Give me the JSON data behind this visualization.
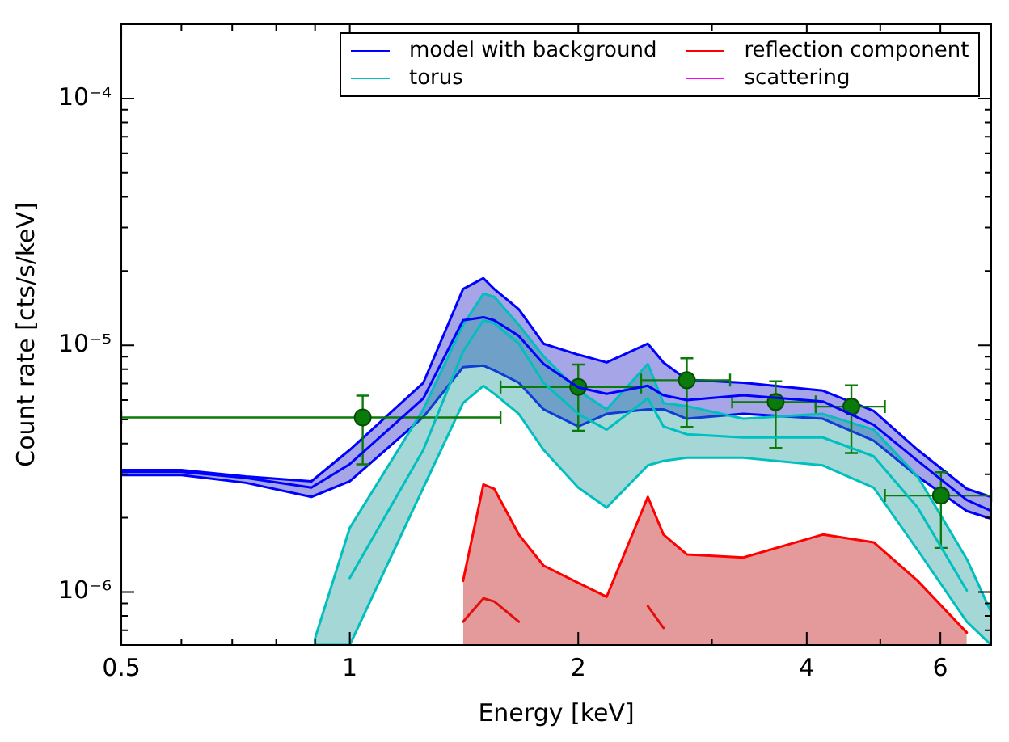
{
  "chart_data": {
    "type": "line",
    "xlabel": "Energy [keV]",
    "ylabel": "Count rate [cts/s/keV]",
    "log": "xy",
    "legend": "top right",
    "xlim": [
      0.5,
      7
    ],
    "ylim": [
      6.1e-07,
      0.0002
    ],
    "xticks": [
      0.5,
      {
        "value": 0.6,
        "label": null
      },
      {
        "value": 0.7,
        "label": null
      },
      {
        "value": 0.8,
        "label": null
      },
      {
        "value": 0.9,
        "label": null
      },
      1,
      2,
      {
        "value": 3,
        "label": null
      },
      4,
      {
        "value": 5,
        "label": null
      },
      6,
      {
        "value": 7,
        "label": null
      }
    ],
    "yticks": [
      {
        "value": 7e-07,
        "label": null
      },
      {
        "value": 8e-07,
        "label": null
      },
      {
        "value": 9e-07,
        "label": null
      },
      {
        "value": 1e-06,
        "label": "10⁻⁶"
      },
      {
        "value": 2e-06,
        "label": null
      },
      {
        "value": 3e-06,
        "label": null
      },
      {
        "value": 4e-06,
        "label": null
      },
      {
        "value": 5e-06,
        "label": null
      },
      {
        "value": 6e-06,
        "label": null
      },
      {
        "value": 7e-06,
        "label": null
      },
      {
        "value": 8e-06,
        "label": null
      },
      {
        "value": 9e-06,
        "label": null
      },
      {
        "value": 1e-05,
        "label": "10⁻⁵"
      },
      {
        "value": 2e-05,
        "label": null
      },
      {
        "value": 3e-05,
        "label": null
      },
      {
        "value": 4e-05,
        "label": null
      },
      {
        "value": 5e-05,
        "label": null
      },
      {
        "value": 6e-05,
        "label": null
      },
      {
        "value": 7e-05,
        "label": null
      },
      {
        "value": 8e-05,
        "label": null
      },
      {
        "value": 9e-05,
        "label": null
      },
      {
        "value": 0.0001,
        "label": "10⁻⁴"
      },
      {
        "value": 0.0002,
        "label": null
      }
    ],
    "x": [
      0.5,
      0.6,
      0.73,
      0.89,
      1.0,
      1.25,
      1.41,
      1.5,
      1.55,
      1.67,
      1.8,
      2.0,
      2.18,
      2.47,
      2.59,
      2.78,
      3.3,
      4.2,
      4.9,
      5.6,
      6.5,
      7.0
    ],
    "series": [
      {
        "name": "model with background",
        "color": "#0000ff",
        "values": [
          3.07e-06,
          3.07e-06,
          2.9e-06,
          2.65e-06,
          3.3e-06,
          6.09e-06,
          1.263e-05,
          1.3e-05,
          1.263e-05,
          1.091e-05,
          8.4e-06,
          6.75e-06,
          6.36e-06,
          6.85e-06,
          6.27e-06,
          6e-06,
          6.27e-06,
          5.92e-06,
          4.76e-06,
          3.4e-06,
          2.36e-06,
          2.13e-06
        ],
        "upper": [
          3.12e-06,
          3.12e-06,
          2.94e-06,
          2.81e-06,
          3.77e-06,
          7.05e-06,
          1.69e-05,
          1.87e-05,
          1.69e-05,
          1.4e-05,
          1.015e-05,
          9.16e-06,
          8.52e-06,
          1.015e-05,
          8.52e-06,
          7.26e-06,
          7.05e-06,
          6.55e-06,
          5.42e-06,
          3.77e-06,
          2.62e-06,
          2.43e-06
        ],
        "lower": [
          2.98e-06,
          2.98e-06,
          2.77e-06,
          2.43e-06,
          2.81e-06,
          5.12e-06,
          8.15e-06,
          8.27e-06,
          7.92e-06,
          7.05e-06,
          5.5e-06,
          4.69e-06,
          5.27e-06,
          5.5e-06,
          5.5e-06,
          5.04e-06,
          5.27e-06,
          5.04e-06,
          4.11e-06,
          2.94e-06,
          2.13e-06,
          1.98e-06
        ]
      },
      {
        "name": "torus",
        "color": "#00bfbf",
        "x": [
          0.9,
          1.0,
          1.25,
          1.41,
          1.5,
          1.55,
          1.67,
          1.8,
          2.0,
          2.18,
          2.47,
          2.59,
          2.78,
          3.3,
          4.2,
          4.9,
          5.6,
          6.5,
          7.0
        ],
        "values": [
          null,
          1.14e-06,
          3.77e-06,
          9.43e-06,
          1.263e-05,
          1.226e-05,
          1.015e-05,
          7.05e-06,
          5.27e-06,
          4.55e-06,
          6.09e-06,
          4.69e-06,
          4.36e-06,
          4.23e-06,
          4.23e-06,
          3.55e-06,
          2.2e-06,
          1.015e-06,
          null
        ],
        "upper": [
          6.5e-07,
          1.82e-06,
          5.5e-06,
          1.209e-05,
          1.618e-05,
          1.571e-05,
          1.209e-05,
          9.03e-06,
          6.55e-06,
          5.5e-06,
          8.4e-06,
          5.83e-06,
          5.67e-06,
          5.04e-06,
          5.27e-06,
          4.55e-06,
          2.94e-06,
          1.36e-06,
          8.27e-07
        ],
        "lower": [
          6.1e-07,
          6.1e-07,
          2.65e-06,
          5.83e-06,
          6.85e-06,
          6.36e-06,
          5.27e-06,
          3.77e-06,
          2.65e-06,
          2.2e-06,
          3.26e-06,
          3.4e-06,
          3.5e-06,
          3.5e-06,
          3.26e-06,
          2.65e-06,
          1.48e-06,
          7.58e-07,
          6.1e-07
        ]
      },
      {
        "name": "reflection component",
        "type": "area",
        "color": "#ff0000",
        "values": [
          null,
          null,
          null,
          null,
          null,
          null,
          1.11e-06,
          2.73e-06,
          2.62e-06,
          1.71e-06,
          1.28e-06,
          1.09e-06,
          9.57e-07,
          2.43e-06,
          1.71e-06,
          1.42e-06,
          1.38e-06,
          1.71e-06,
          1.59e-06,
          1.11e-06,
          6.85e-07,
          null
        ]
      },
      {
        "type": "line",
        "color": "#ff0000",
        "values": [
          null,
          null,
          null,
          null,
          null,
          null,
          7.58e-07,
          9.43e-07,
          9.16e-07,
          7.58e-07,
          null,
          null,
          null,
          8.77e-07,
          7.15e-07,
          null,
          null,
          null,
          null,
          null,
          null,
          null
        ]
      },
      {
        "name": "scattering",
        "color": "#ff00ff",
        "values": [
          null,
          null,
          null,
          null,
          null,
          null,
          null,
          null,
          null,
          null,
          null,
          null,
          null,
          null,
          null,
          null,
          null,
          null,
          null,
          null,
          null,
          null
        ]
      },
      {
        "type": "scatter",
        "color": "#0a7a0a",
        "marker": "circle",
        "x": [
          1.04,
          2.0,
          2.78,
          3.64,
          4.58,
          6.01
        ],
        "values": [
          5.1e-06,
          6.78e-06,
          7.22e-06,
          5.89e-06,
          5.64e-06,
          2.46e-06
        ],
        "errors": [
          [
            3.29e-06,
            6.25e-06
          ],
          [
            4.5e-06,
            8.36e-06
          ],
          [
            4.67e-06,
            8.86e-06
          ],
          [
            3.84e-06,
            7.15e-06
          ],
          [
            3.66e-06,
            6.88e-06
          ],
          [
            1.51e-06,
            3.06e-06
          ]
        ],
        "xerrors": [
          [
            0.5,
            1.58
          ],
          [
            1.58,
            2.42
          ],
          [
            2.42,
            3.17
          ],
          [
            3.19,
            4.11
          ],
          [
            4.11,
            5.07
          ],
          [
            5.07,
            7.0
          ]
        ]
      }
    ]
  }
}
